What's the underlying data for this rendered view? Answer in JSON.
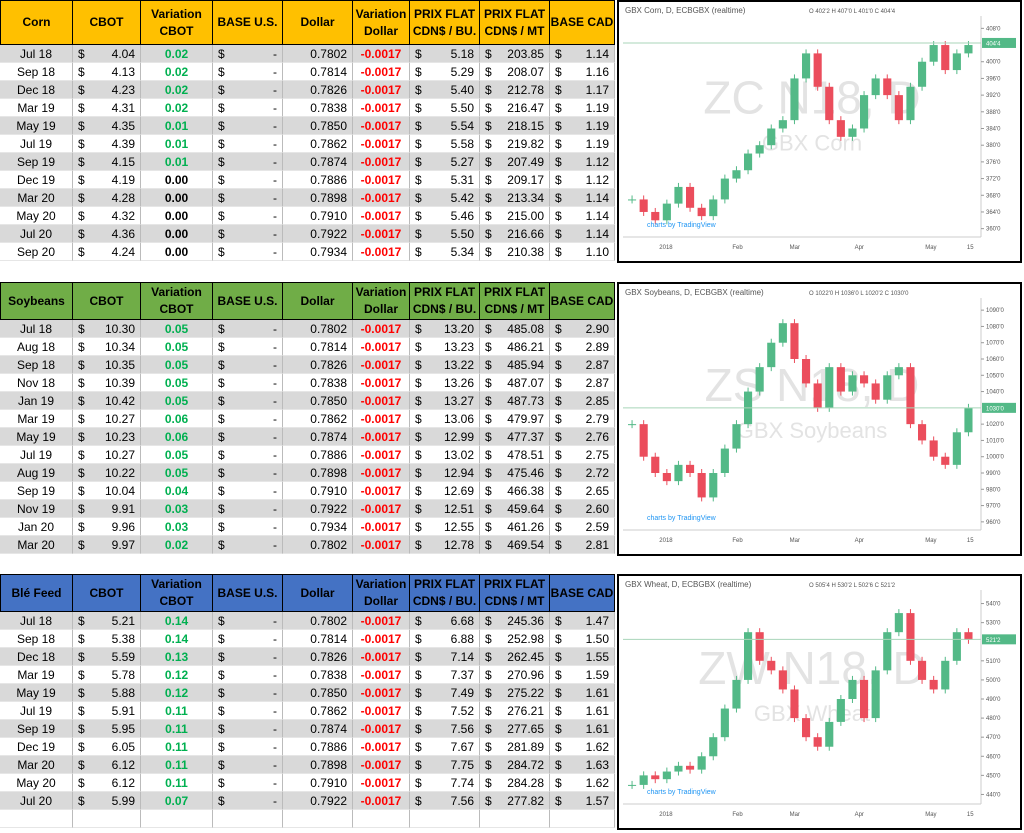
{
  "currency_symbol": "$",
  "sections": [
    {
      "headers": [
        [
          "Corn"
        ],
        [
          "CBOT"
        ],
        [
          "Variation",
          "CBOT"
        ],
        [
          "BASE U.S."
        ],
        [
          "Dollar"
        ],
        [
          "Variation",
          "Dollar"
        ],
        [
          "PRIX FLAT",
          "CDN$ / BU."
        ],
        [
          "PRIX FLAT",
          "CDN$ / MT"
        ],
        [
          "BASE CAD"
        ]
      ],
      "header_color": "#ffc000",
      "rows": [
        [
          "Jul 18",
          "4.04",
          "0.02",
          "-",
          "0.7802",
          "-0.0017",
          "5.18",
          "203.85",
          "1.14"
        ],
        [
          "Sep 18",
          "4.13",
          "0.02",
          "-",
          "0.7814",
          "-0.0017",
          "5.29",
          "208.07",
          "1.16"
        ],
        [
          "Dec 18",
          "4.23",
          "0.02",
          "-",
          "0.7826",
          "-0.0017",
          "5.40",
          "212.78",
          "1.17"
        ],
        [
          "Mar 19",
          "4.31",
          "0.02",
          "-",
          "0.7838",
          "-0.0017",
          "5.50",
          "216.47",
          "1.19"
        ],
        [
          "May 19",
          "4.35",
          "0.01",
          "-",
          "0.7850",
          "-0.0017",
          "5.54",
          "218.15",
          "1.19"
        ],
        [
          "Jul 19",
          "4.39",
          "0.01",
          "-",
          "0.7862",
          "-0.0017",
          "5.58",
          "219.82",
          "1.19"
        ],
        [
          "Sep 19",
          "4.15",
          "0.01",
          "-",
          "0.7874",
          "-0.0017",
          "5.27",
          "207.49",
          "1.12"
        ],
        [
          "Dec 19",
          "4.19",
          "0.00",
          "-",
          "0.7886",
          "-0.0017",
          "5.31",
          "209.17",
          "1.12"
        ],
        [
          "Mar 20",
          "4.28",
          "0.00",
          "-",
          "0.7898",
          "-0.0017",
          "5.42",
          "213.34",
          "1.14"
        ],
        [
          "May 20",
          "4.32",
          "0.00",
          "-",
          "0.7910",
          "-0.0017",
          "5.46",
          "215.00",
          "1.14"
        ],
        [
          "Jul 20",
          "4.36",
          "0.00",
          "-",
          "0.7922",
          "-0.0017",
          "5.50",
          "216.66",
          "1.14"
        ],
        [
          "Sep 20",
          "4.24",
          "0.00",
          "-",
          "0.7934",
          "-0.0017",
          "5.34",
          "210.38",
          "1.10"
        ]
      ],
      "chart": {
        "type": "candlestick",
        "title": "GBX Corn, D, ECBGBX (realtime)",
        "ohlc": "O 402'2 H 407'0 L 401'0 C 404'4",
        "watermark": "ZC N18, D",
        "watermark_subtitle": "GBX Corn",
        "credit": "charts by TradingView",
        "xlabels": [
          "2018",
          "Feb",
          "Mar",
          "Apr",
          "May",
          "15"
        ],
        "ylim": [
          358,
          410
        ],
        "yticks": [
          {
            "value": 360,
            "label": "360'0"
          },
          {
            "value": 364,
            "label": "364'0"
          },
          {
            "value": 368,
            "label": "368'0"
          },
          {
            "value": 372,
            "label": "372'0"
          },
          {
            "value": 376,
            "label": "376'0"
          },
          {
            "value": 380,
            "label": "380'0"
          },
          {
            "value": 384,
            "label": "384'0"
          },
          {
            "value": 388,
            "label": "388'0"
          },
          {
            "value": 392,
            "label": "392'0"
          },
          {
            "value": 396,
            "label": "396'0"
          },
          {
            "value": 400,
            "label": "400'0"
          },
          {
            "value": 408,
            "label": "408'0"
          }
        ],
        "price_tag": {
          "value": 404.5,
          "label": "404'4"
        },
        "closes": [
          367,
          364,
          362,
          366,
          370,
          365,
          363,
          367,
          372,
          374,
          378,
          380,
          384,
          386,
          396,
          402,
          394,
          386,
          382,
          384,
          392,
          396,
          392,
          386,
          394,
          400,
          404,
          398,
          402,
          404
        ]
      }
    },
    {
      "headers": [
        [
          "Soybeans"
        ],
        [
          "CBOT"
        ],
        [
          "Variation",
          "CBOT"
        ],
        [
          "BASE U.S."
        ],
        [
          "Dollar"
        ],
        [
          "Variation",
          "Dollar"
        ],
        [
          "PRIX FLAT",
          "CDN$ / BU."
        ],
        [
          "PRIX FLAT",
          "CDN$ / MT"
        ],
        [
          "BASE CAD"
        ]
      ],
      "header_color": "#70ad47",
      "rows": [
        [
          "Jul 18",
          "10.30",
          "0.05",
          "-",
          "0.7802",
          "-0.0017",
          "13.20",
          "485.08",
          "2.90"
        ],
        [
          "Aug 18",
          "10.34",
          "0.05",
          "-",
          "0.7814",
          "-0.0017",
          "13.23",
          "486.21",
          "2.89"
        ],
        [
          "Sep 18",
          "10.35",
          "0.05",
          "-",
          "0.7826",
          "-0.0017",
          "13.22",
          "485.94",
          "2.87"
        ],
        [
          "Nov 18",
          "10.39",
          "0.05",
          "-",
          "0.7838",
          "-0.0017",
          "13.26",
          "487.07",
          "2.87"
        ],
        [
          "Jan 19",
          "10.42",
          "0.05",
          "-",
          "0.7850",
          "-0.0017",
          "13.27",
          "487.73",
          "2.85"
        ],
        [
          "Mar 19",
          "10.27",
          "0.06",
          "-",
          "0.7862",
          "-0.0017",
          "13.06",
          "479.97",
          "2.79"
        ],
        [
          "May 19",
          "10.23",
          "0.06",
          "-",
          "0.7874",
          "-0.0017",
          "12.99",
          "477.37",
          "2.76"
        ],
        [
          "Jul 19",
          "10.27",
          "0.05",
          "-",
          "0.7886",
          "-0.0017",
          "13.02",
          "478.51",
          "2.75"
        ],
        [
          "Aug 19",
          "10.22",
          "0.05",
          "-",
          "0.7898",
          "-0.0017",
          "12.94",
          "475.46",
          "2.72"
        ],
        [
          "Sep 19",
          "10.04",
          "0.04",
          "-",
          "0.7910",
          "-0.0017",
          "12.69",
          "466.38",
          "2.65"
        ],
        [
          "Nov 19",
          "9.91",
          "0.03",
          "-",
          "0.7922",
          "-0.0017",
          "12.51",
          "459.64",
          "2.60"
        ],
        [
          "Jan 20",
          "9.96",
          "0.03",
          "-",
          "0.7934",
          "-0.0017",
          "12.55",
          "461.26",
          "2.59"
        ],
        [
          "Mar 20",
          "9.97",
          "0.02",
          "-",
          "0.7802",
          "-0.0017",
          "12.78",
          "469.54",
          "2.81"
        ]
      ],
      "chart": {
        "type": "candlestick",
        "title": "GBX Soybeans, D, ECBGBX (realtime)",
        "ohlc": "O 1022'0 H 1036'0 L 1020'2 C 1030'0",
        "watermark": "ZS N18, D",
        "watermark_subtitle": "GBX Soybeans",
        "credit": "charts by TradingView",
        "xlabels": [
          "2018",
          "Feb",
          "Mar",
          "Apr",
          "May",
          "15"
        ],
        "ylim": [
          955,
          1095
        ],
        "yticks": [
          {
            "value": 960,
            "label": "960'0"
          },
          {
            "value": 970,
            "label": "970'0"
          },
          {
            "value": 980,
            "label": "980'0"
          },
          {
            "value": 990,
            "label": "990'0"
          },
          {
            "value": 1000,
            "label": "1000'0"
          },
          {
            "value": 1010,
            "label": "1010'0"
          },
          {
            "value": 1020,
            "label": "1020'0"
          },
          {
            "value": 1040,
            "label": "1040'0"
          },
          {
            "value": 1050,
            "label": "1050'0"
          },
          {
            "value": 1060,
            "label": "1060'0"
          },
          {
            "value": 1070,
            "label": "1070'0"
          },
          {
            "value": 1080,
            "label": "1080'0"
          },
          {
            "value": 1090,
            "label": "1090'0"
          }
        ],
        "price_tag": {
          "value": 1030,
          "label": "1030'0"
        },
        "closes": [
          1020,
          1000,
          990,
          985,
          995,
          990,
          975,
          990,
          1005,
          1020,
          1040,
          1055,
          1070,
          1082,
          1060,
          1045,
          1030,
          1055,
          1040,
          1050,
          1045,
          1035,
          1050,
          1055,
          1020,
          1010,
          1000,
          995,
          1015,
          1030
        ]
      }
    },
    {
      "headers": [
        [
          "Blé Feed"
        ],
        [
          "CBOT"
        ],
        [
          "Variation",
          "CBOT"
        ],
        [
          "BASE U.S."
        ],
        [
          "Dollar"
        ],
        [
          "Variation",
          "Dollar"
        ],
        [
          "PRIX FLAT",
          "CDN$ / BU."
        ],
        [
          "PRIX FLAT",
          "CDN$ / MT"
        ],
        [
          "BASE CAD"
        ]
      ],
      "header_color": "#4472c4",
      "rows": [
        [
          "Jul 18",
          "5.21",
          "0.14",
          "-",
          "0.7802",
          "-0.0017",
          "6.68",
          "245.36",
          "1.47"
        ],
        [
          "Sep 18",
          "5.38",
          "0.14",
          "-",
          "0.7814",
          "-0.0017",
          "6.88",
          "252.98",
          "1.50"
        ],
        [
          "Dec 18",
          "5.59",
          "0.13",
          "-",
          "0.7826",
          "-0.0017",
          "7.14",
          "262.45",
          "1.55"
        ],
        [
          "Mar 19",
          "5.78",
          "0.12",
          "-",
          "0.7838",
          "-0.0017",
          "7.37",
          "270.96",
          "1.59"
        ],
        [
          "May 19",
          "5.88",
          "0.12",
          "-",
          "0.7850",
          "-0.0017",
          "7.49",
          "275.22",
          "1.61"
        ],
        [
          "Jul 19",
          "5.91",
          "0.11",
          "-",
          "0.7862",
          "-0.0017",
          "7.52",
          "276.21",
          "1.61"
        ],
        [
          "Sep 19",
          "5.95",
          "0.11",
          "-",
          "0.7874",
          "-0.0017",
          "7.56",
          "277.65",
          "1.61"
        ],
        [
          "Dec 19",
          "6.05",
          "0.11",
          "-",
          "0.7886",
          "-0.0017",
          "7.67",
          "281.89",
          "1.62"
        ],
        [
          "Mar 20",
          "6.12",
          "0.11",
          "-",
          "0.7898",
          "-0.0017",
          "7.75",
          "284.72",
          "1.63"
        ],
        [
          "May 20",
          "6.12",
          "0.11",
          "-",
          "0.7910",
          "-0.0017",
          "7.74",
          "284.28",
          "1.62"
        ],
        [
          "Jul 20",
          "5.99",
          "0.07",
          "-",
          "0.7922",
          "-0.0017",
          "7.56",
          "277.82",
          "1.57"
        ]
      ],
      "chart": {
        "type": "candlestick",
        "title": "GBX Wheat, D, ECBGBX (realtime)",
        "ohlc": "O 505'4 H 530'2 L 502'6 C 521'2",
        "watermark": "ZW N18, D",
        "watermark_subtitle": "GBX Wheat",
        "credit": "charts by TradingView",
        "xlabels": [
          "2018",
          "Feb",
          "Mar",
          "Apr",
          "May",
          "15"
        ],
        "ylim": [
          435,
          545
        ],
        "yticks": [
          {
            "value": 440,
            "label": "440'0"
          },
          {
            "value": 450,
            "label": "450'0"
          },
          {
            "value": 460,
            "label": "460'0"
          },
          {
            "value": 470,
            "label": "470'0"
          },
          {
            "value": 480,
            "label": "480'0"
          },
          {
            "value": 490,
            "label": "490'0"
          },
          {
            "value": 500,
            "label": "500'0"
          },
          {
            "value": 510,
            "label": "510'0"
          },
          {
            "value": 530,
            "label": "530'0"
          },
          {
            "value": 540,
            "label": "540'0"
          }
        ],
        "price_tag": {
          "value": 521.25,
          "label": "521'2"
        },
        "closes": [
          445,
          450,
          448,
          452,
          455,
          453,
          460,
          470,
          485,
          500,
          525,
          510,
          505,
          495,
          480,
          470,
          465,
          478,
          490,
          500,
          480,
          505,
          525,
          535,
          510,
          500,
          495,
          510,
          525,
          521
        ]
      }
    }
  ]
}
